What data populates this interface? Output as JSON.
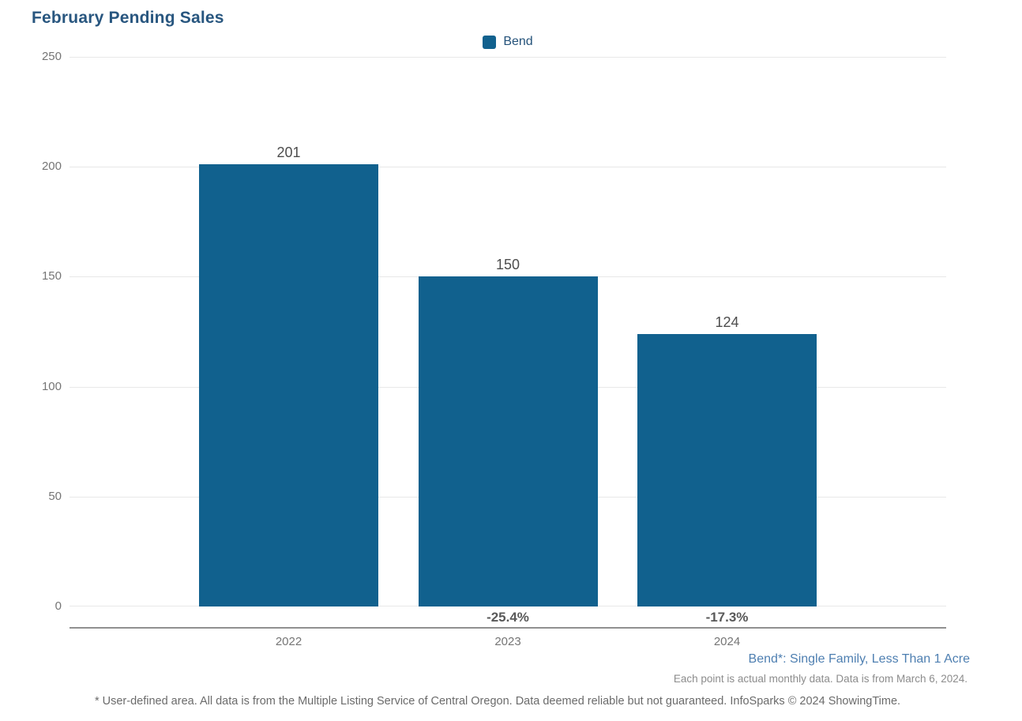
{
  "title": "February Pending Sales",
  "legend": {
    "items": [
      {
        "label": "Bend",
        "color": "#11618e"
      }
    ]
  },
  "chart_data": {
    "type": "bar",
    "title": "February Pending Sales",
    "categories": [
      "2022",
      "2023",
      "2024"
    ],
    "series": [
      {
        "name": "Bend",
        "color": "#11618e",
        "values": [
          201,
          150,
          124
        ]
      }
    ],
    "bar_value_labels": [
      "201",
      "150",
      "124"
    ],
    "pct_change_labels": [
      "",
      "-25.4%",
      "-17.3%"
    ],
    "xlabel": "",
    "ylabel": "",
    "ylim": [
      0,
      250
    ],
    "yticks": [
      0,
      50,
      100,
      150,
      200,
      250
    ],
    "grid": true,
    "legend_position": "top-center"
  },
  "notes": {
    "series_note": "Bend*: Single Family, Less Than 1 Acre",
    "data_note": "Each point is actual monthly data. Data is from March 6, 2024.",
    "footer": "* User-defined area. All data is from the Multiple Listing Service of Central Oregon. Data deemed reliable but not guaranteed. InfoSparks © 2024 ShowingTime."
  },
  "colors": {
    "bar": "#11618e",
    "title": "#28567f",
    "legend_text": "#24527a",
    "axis_line": "#909090",
    "gridline": "#e8e8e8",
    "tick_text": "#757575",
    "value_text": "#4d4d4d",
    "pct_text": "#595959",
    "series_note_text": "#4e7fb1",
    "data_note_text": "#8c8c8c",
    "footer_text": "#6b6b6b"
  }
}
